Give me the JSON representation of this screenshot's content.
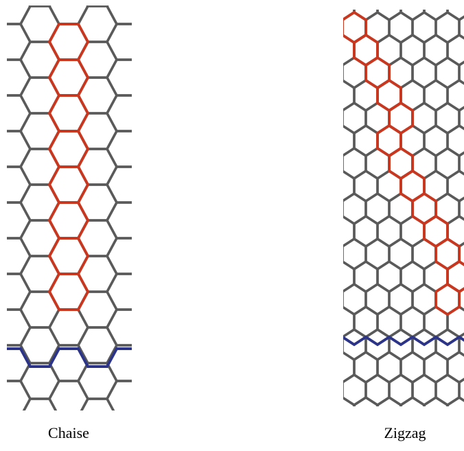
{
  "labels": {
    "left": "Chaise",
    "right": "Zigzag"
  }
}
